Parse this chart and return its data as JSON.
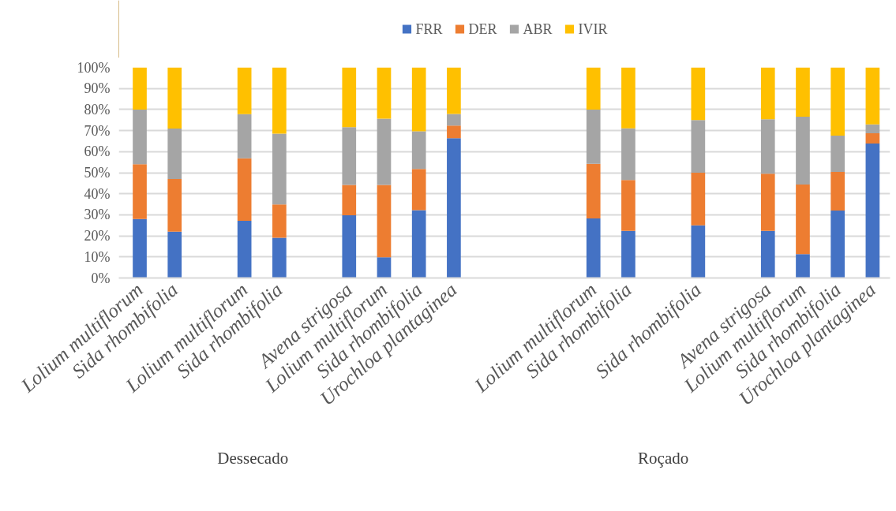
{
  "chart_data": {
    "type": "bar",
    "stacked": true,
    "categories": [
      "Lolium multiflorum",
      "Sida rhombifolia",
      null,
      "Lolium multiflorum",
      "Sida rhombifolia",
      null,
      "Avena strigosa",
      "Lolium multiflorum",
      "Sida rhombifolia",
      "Urochloa plantaginea",
      null,
      null,
      null,
      "Lolium multiflorum",
      "Sida rhombifolia",
      null,
      "Sida rhombifolia",
      null,
      "Avena strigosa",
      "Lolium multiflorum",
      "Sida rhombifolia",
      "Urochloa plantaginea"
    ],
    "series": [
      {
        "name": "FRR",
        "color": "#4472c4",
        "values": [
          28,
          22,
          null,
          27.2,
          19.1,
          null,
          29.8,
          9.8,
          32.2,
          66.4,
          null,
          null,
          null,
          28.3,
          22.4,
          null,
          25,
          null,
          22.4,
          11.3,
          32,
          63.9
        ]
      },
      {
        "name": "DER",
        "color": "#ed7d31",
        "values": [
          26,
          25,
          null,
          29.6,
          15.8,
          null,
          14.4,
          34.4,
          19.6,
          6,
          null,
          null,
          null,
          25.9,
          24.1,
          null,
          25,
          null,
          27.1,
          33.1,
          18.4,
          4.8
        ]
      },
      {
        "name": "ABR",
        "color": "#a5a5a5",
        "values": [
          26,
          24,
          null,
          21,
          33.6,
          null,
          27.4,
          31.5,
          17.9,
          5.5,
          null,
          null,
          null,
          25.8,
          24.6,
          null,
          25,
          null,
          25.9,
          32.2,
          17.2,
          4.2
        ]
      },
      {
        "name": "IVIR",
        "color": "#ffc000",
        "values": [
          20,
          29,
          null,
          22.2,
          31.5,
          null,
          28.4,
          24.3,
          30.3,
          22.1,
          null,
          null,
          null,
          20,
          28.9,
          null,
          25,
          null,
          24.6,
          23.4,
          32.4,
          27.1
        ]
      }
    ],
    "ylim": [
      0,
      100
    ],
    "yticks": [
      {
        "value": 0,
        "label": "0%"
      },
      {
        "value": 10,
        "label": "10%"
      },
      {
        "value": 20,
        "label": "20%"
      },
      {
        "value": 30,
        "label": "30%"
      },
      {
        "value": 40,
        "label": "40%"
      },
      {
        "value": 50,
        "label": "50%"
      },
      {
        "value": 60,
        "label": "60%"
      },
      {
        "value": 70,
        "label": "70%"
      },
      {
        "value": 80,
        "label": "80%"
      },
      {
        "value": 90,
        "label": "90%"
      },
      {
        "value": 100,
        "label": "100%"
      }
    ],
    "grid": "y",
    "legend": "top",
    "annotations": [
      "Dessecado",
      "Roçado"
    ]
  }
}
